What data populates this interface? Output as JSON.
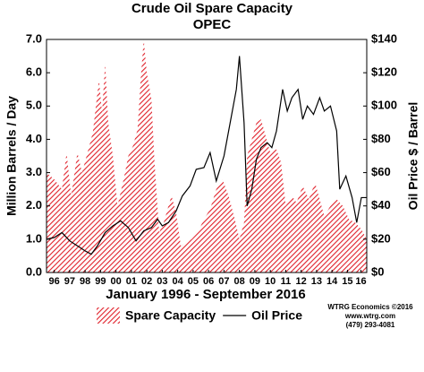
{
  "chart_data": {
    "type": "area-line",
    "title": "Crude Oil Spare Capacity",
    "subtitle": "OPEC",
    "ylabel": "Million Barrels / Day",
    "y2label": "Oil Price $ / Barrel",
    "xlabel": "January 1996 - September 2016",
    "credits": [
      "WTRG Economics ©2016",
      "www.wtrg.com",
      "(479) 293-4081"
    ],
    "xlim": [
      1996,
      2016.75
    ],
    "xticks": [
      {
        "value": 1996.5,
        "label": "96"
      },
      {
        "value": 1997.5,
        "label": "97"
      },
      {
        "value": 1998.5,
        "label": "98"
      },
      {
        "value": 1999.5,
        "label": "99"
      },
      {
        "value": 2000.5,
        "label": "00"
      },
      {
        "value": 2001.5,
        "label": "01"
      },
      {
        "value": 2002.5,
        "label": "02"
      },
      {
        "value": 2003.5,
        "label": "03"
      },
      {
        "value": 2004.5,
        "label": "04"
      },
      {
        "value": 2005.5,
        "label": "05"
      },
      {
        "value": 2006.5,
        "label": "06"
      },
      {
        "value": 2007.5,
        "label": "07"
      },
      {
        "value": 2008.5,
        "label": "08"
      },
      {
        "value": 2009.5,
        "label": "09"
      },
      {
        "value": 2010.5,
        "label": "10"
      },
      {
        "value": 2011.5,
        "label": "11"
      },
      {
        "value": 2012.5,
        "label": "12"
      },
      {
        "value": 2013.5,
        "label": "13"
      },
      {
        "value": 2014.5,
        "label": "14"
      },
      {
        "value": 2015.5,
        "label": "15"
      },
      {
        "value": 2016.375,
        "label": "16"
      }
    ],
    "ylim": [
      0,
      7
    ],
    "yticks": [
      {
        "value": 0,
        "label": "0.0"
      },
      {
        "value": 1,
        "label": "1.0"
      },
      {
        "value": 2,
        "label": "2.0"
      },
      {
        "value": 3,
        "label": "3.0"
      },
      {
        "value": 4,
        "label": "4.0"
      },
      {
        "value": 5,
        "label": "5.0"
      },
      {
        "value": 6,
        "label": "6.0"
      },
      {
        "value": 7,
        "label": "7.0"
      }
    ],
    "y2lim": [
      0,
      140
    ],
    "y2ticks": [
      {
        "value": 0,
        "label": "$0"
      },
      {
        "value": 20,
        "label": "$20"
      },
      {
        "value": 40,
        "label": "$40"
      },
      {
        "value": 60,
        "label": "$60"
      },
      {
        "value": 80,
        "label": "$80"
      },
      {
        "value": 100,
        "label": "$100"
      },
      {
        "value": 120,
        "label": "$120"
      },
      {
        "value": 140,
        "label": "$140"
      }
    ],
    "series": [
      {
        "name": "Spare Capacity",
        "kind": "area",
        "color": "#e0202a",
        "axis": "y",
        "x": [
          1996.0,
          1996.5,
          1997.0,
          1997.3,
          1997.6,
          1998.0,
          1998.3,
          1998.6,
          1999.0,
          1999.2,
          1999.4,
          1999.6,
          1999.8,
          2000.0,
          2000.3,
          2000.6,
          2001.0,
          2001.3,
          2001.6,
          2001.9,
          2002.1,
          2002.3,
          2002.5,
          2002.8,
          2003.0,
          2003.3,
          2003.6,
          2003.9,
          2004.1,
          2004.4,
          2004.7,
          2005.0,
          2005.4,
          2005.8,
          2006.2,
          2006.6,
          2007.0,
          2007.4,
          2007.8,
          2008.2,
          2008.5,
          2008.8,
          2009.0,
          2009.3,
          2009.6,
          2009.9,
          2010.2,
          2010.5,
          2010.9,
          2011.2,
          2011.5,
          2011.9,
          2012.2,
          2012.6,
          2013.0,
          2013.4,
          2013.7,
          2014.0,
          2014.4,
          2014.8,
          2015.2,
          2015.6,
          2016.0,
          2016.4,
          2016.75
        ],
        "values": [
          3.0,
          2.8,
          2.5,
          3.6,
          2.3,
          3.6,
          3.0,
          3.5,
          4.2,
          5.0,
          5.8,
          4.8,
          6.3,
          4.5,
          3.5,
          2.0,
          2.8,
          3.5,
          3.8,
          4.3,
          5.8,
          7.0,
          6.0,
          5.2,
          3.3,
          1.2,
          1.5,
          2.0,
          2.3,
          1.8,
          0.8,
          0.9,
          1.0,
          1.2,
          1.6,
          1.9,
          2.5,
          2.8,
          2.3,
          1.6,
          1.0,
          1.5,
          3.5,
          4.0,
          4.5,
          4.6,
          4.1,
          3.6,
          3.7,
          3.3,
          2.0,
          2.3,
          2.1,
          2.6,
          2.2,
          2.7,
          2.2,
          1.7,
          2.0,
          2.2,
          2.0,
          1.6,
          1.5,
          1.3,
          1.0
        ]
      },
      {
        "name": "Oil Price",
        "kind": "line",
        "color": "#000000",
        "axis": "y2",
        "x": [
          1996.0,
          1996.5,
          1997.0,
          1997.5,
          1998.0,
          1998.5,
          1998.9,
          1999.3,
          1999.8,
          2000.3,
          2000.8,
          2001.3,
          2001.8,
          2002.3,
          2002.8,
          2003.2,
          2003.5,
          2003.9,
          2004.4,
          2004.8,
          2005.3,
          2005.7,
          2006.2,
          2006.6,
          2007.0,
          2007.5,
          2007.9,
          2008.3,
          2008.5,
          2008.8,
          2009.0,
          2009.3,
          2009.6,
          2009.9,
          2010.3,
          2010.6,
          2010.9,
          2011.3,
          2011.6,
          2011.9,
          2012.3,
          2012.6,
          2012.9,
          2013.3,
          2013.7,
          2014.0,
          2014.4,
          2014.8,
          2015.0,
          2015.4,
          2015.8,
          2016.1,
          2016.4,
          2016.75
        ],
        "values": [
          20,
          21,
          24,
          19,
          16,
          13,
          11,
          16,
          24,
          28,
          31,
          27,
          19,
          25,
          27,
          32,
          28,
          30,
          37,
          46,
          52,
          62,
          63,
          72,
          55,
          70,
          90,
          110,
          130,
          90,
          40,
          50,
          68,
          75,
          78,
          75,
          85,
          110,
          97,
          105,
          110,
          92,
          100,
          95,
          105,
          97,
          100,
          85,
          50,
          58,
          45,
          30,
          45,
          45
        ]
      }
    ]
  }
}
